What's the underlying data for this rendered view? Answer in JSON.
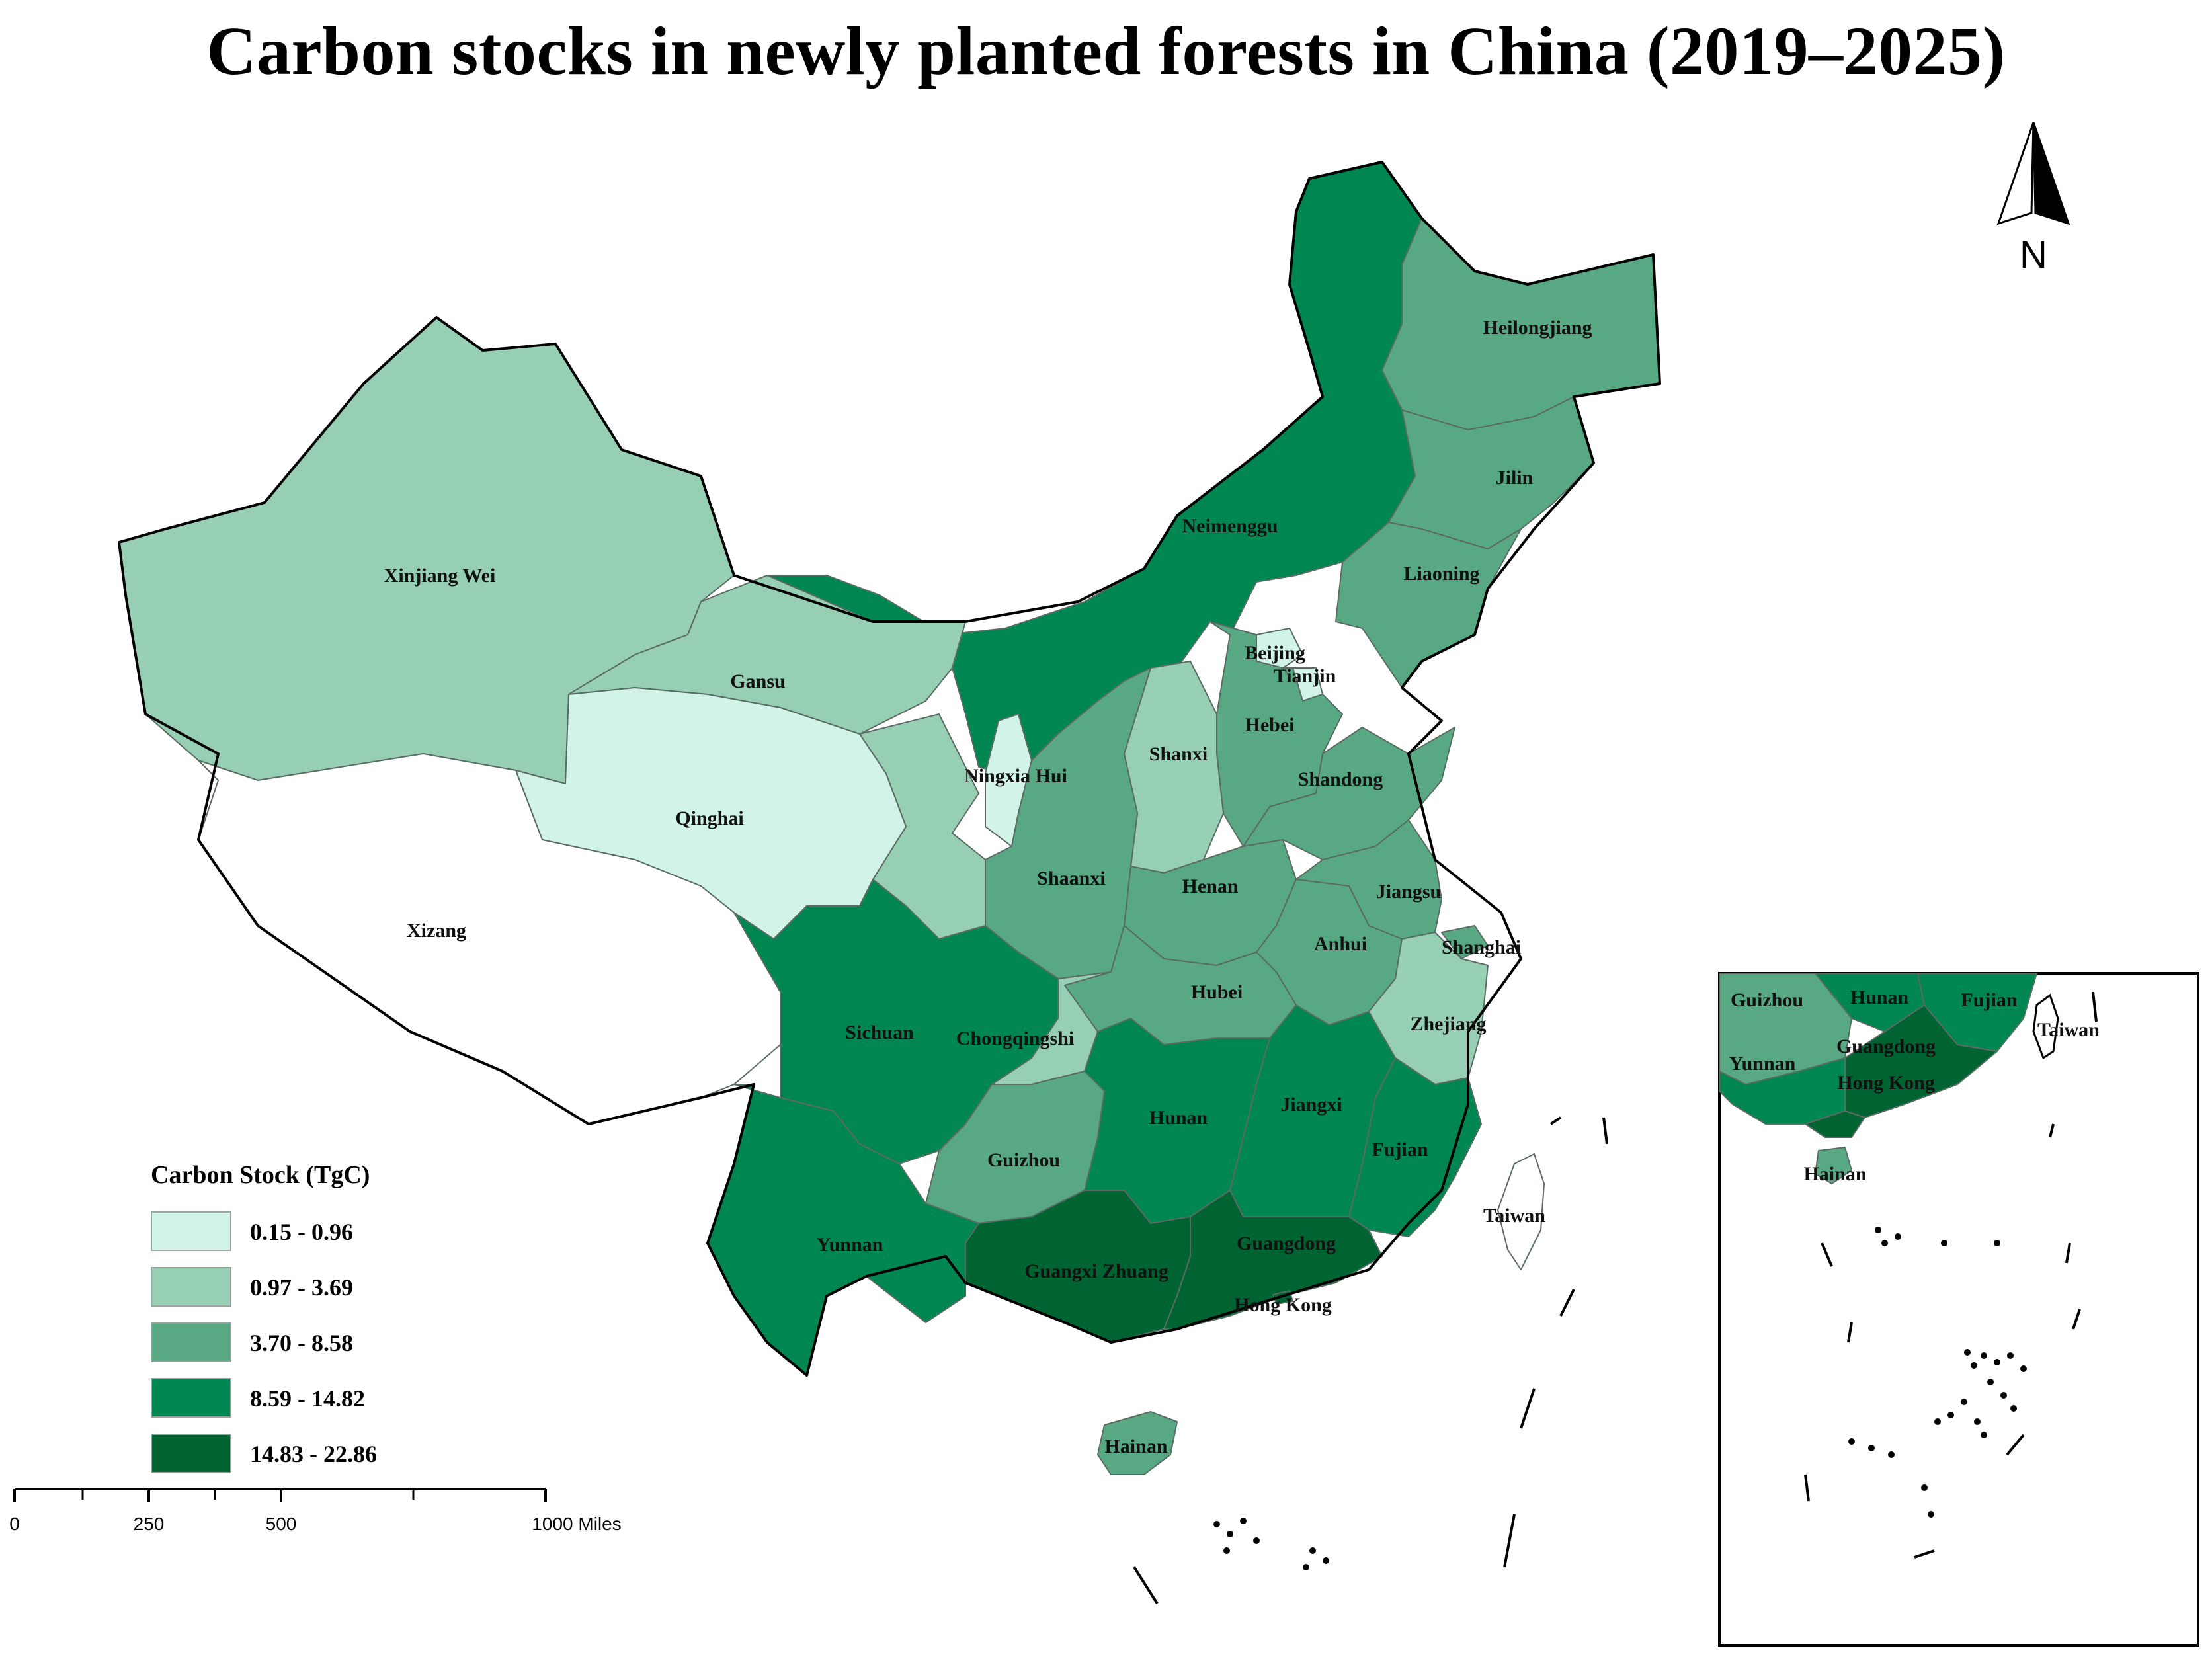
{
  "title": "Carbon stocks in newly planted forests in China (2019–2025)",
  "north_label": "N",
  "legend": {
    "title": "Carbon Stock (TgC)",
    "classes": [
      {
        "label": "0.15 - 0.96",
        "color": "#d2f3e7"
      },
      {
        "label": "0.97 - 3.69",
        "color": "#96cfb3"
      },
      {
        "label": "3.70 - 8.58",
        "color": "#58a983"
      },
      {
        "label": "8.59 - 14.82",
        "color": "#008751"
      },
      {
        "label": "14.83 - 22.86",
        "color": "#006432"
      }
    ],
    "no_data_color": "#ffffff"
  },
  "scale_bar": {
    "ticks": [
      "0",
      "250",
      "500",
      "1000 Miles"
    ]
  },
  "provinces": [
    {
      "name": "Heilongjiang",
      "class": 2
    },
    {
      "name": "Jilin",
      "class": 2
    },
    {
      "name": "Liaoning",
      "class": 2
    },
    {
      "name": "Neimenggu",
      "class": 3
    },
    {
      "name": "Xinjiang Wei",
      "class": 1
    },
    {
      "name": "Gansu",
      "class": 1
    },
    {
      "name": "Qinghai",
      "class": 0
    },
    {
      "name": "Xizang",
      "class": null
    },
    {
      "name": "Ningxia Hui",
      "class": 0
    },
    {
      "name": "Beijing",
      "class": 0
    },
    {
      "name": "Tianjin",
      "class": 0
    },
    {
      "name": "Hebei",
      "class": 2
    },
    {
      "name": "Shanxi",
      "class": 1
    },
    {
      "name": "Shandong",
      "class": 2
    },
    {
      "name": "Shaanxi",
      "class": 2
    },
    {
      "name": "Henan",
      "class": 2
    },
    {
      "name": "Jiangsu",
      "class": 2
    },
    {
      "name": "Shanghai",
      "class": 2
    },
    {
      "name": "Anhui",
      "class": 2
    },
    {
      "name": "Hubei",
      "class": 2
    },
    {
      "name": "Zhejiang",
      "class": 1
    },
    {
      "name": "Sichuan",
      "class": 3
    },
    {
      "name": "Chongqingshi",
      "class": 1
    },
    {
      "name": "Hunan",
      "class": 3
    },
    {
      "name": "Jiangxi",
      "class": 3
    },
    {
      "name": "Fujian",
      "class": 3
    },
    {
      "name": "Guizhou",
      "class": 2
    },
    {
      "name": "Yunnan",
      "class": 3
    },
    {
      "name": "Guangxi Zhuang",
      "class": 4
    },
    {
      "name": "Guangdong",
      "class": 4
    },
    {
      "name": "Hong Kong",
      "class": 4
    },
    {
      "name": "Hainan",
      "class": 2
    },
    {
      "name": "Taiwan",
      "class": null
    }
  ],
  "inset_labels": [
    "Guizhou",
    "Hunan",
    "Fujian",
    "Taiwan",
    "Yunnan",
    "Guangdong",
    "Hong Kong",
    "Hainan"
  ]
}
